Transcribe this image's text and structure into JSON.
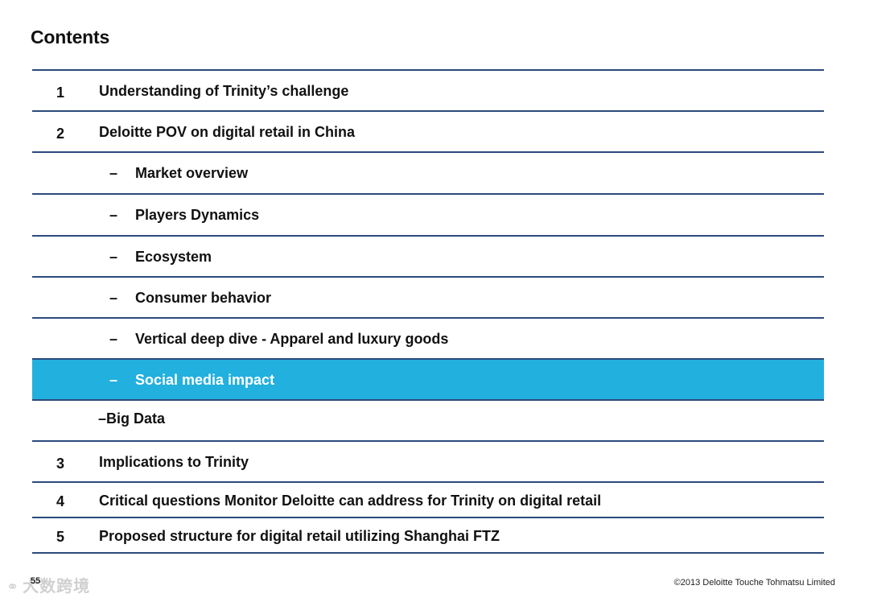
{
  "title": "Contents",
  "items": [
    {
      "num": "1",
      "label": "Understanding of Trinity’s challenge"
    },
    {
      "num": "2",
      "label": "Deloitte POV on digital retail in China"
    },
    {
      "dash": "–",
      "label": "Market overview"
    },
    {
      "dash": "–",
      "label": "Players Dynamics"
    },
    {
      "dash": "–",
      "label": "Ecosystem"
    },
    {
      "dash": "–",
      "label": "Consumer behavior"
    },
    {
      "dash": "–",
      "label": "Vertical deep dive - Apparel and luxury goods"
    },
    {
      "dash": "–",
      "label": "Social media impact"
    },
    {
      "label": "–Big Data"
    },
    {
      "num": "3",
      "label": "Implications to Trinity"
    },
    {
      "num": "4",
      "label": "Critical questions Monitor Deloitte can address for Trinity on digital retail"
    },
    {
      "num": "5",
      "label": "Proposed structure for digital retail utilizing Shanghai FTZ"
    }
  ],
  "highlight_color": "#22b0de",
  "rule_color": "#2b4a7c",
  "footer": {
    "page": "55",
    "watermark": "大数跨境",
    "copyright": "©2013 Deloitte Touche Tohmatsu Limited"
  }
}
